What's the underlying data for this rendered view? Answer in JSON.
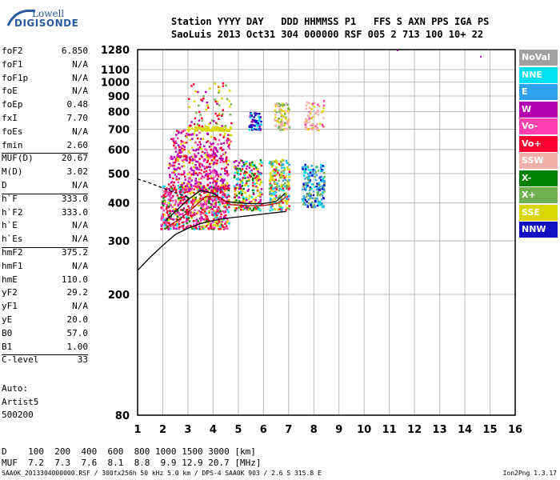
{
  "logo": {
    "line1": "Lowell",
    "line2": "DIGISONDE"
  },
  "header": {
    "line1": "Station YYYY DAY   DDD HHMMSS P1   FFS S AXN PPS IGA PS",
    "line2": "SaoLuis 2013 Oct31 304 000000 RSF 005 2 713 100 10+ 22"
  },
  "params": [
    {
      "label": "foF2",
      "value": "6.850"
    },
    {
      "label": "foF1",
      "value": "N/A"
    },
    {
      "label": "foF1p",
      "value": "N/A"
    },
    {
      "label": "foE",
      "value": "N/A"
    },
    {
      "label": "foEp",
      "value": "0.48"
    },
    {
      "label": "fxI",
      "value": "7.70"
    },
    {
      "label": "foEs",
      "value": "N/A"
    },
    {
      "label": "fmin",
      "value": "2.60"
    },
    {
      "label": "MUF(D)",
      "value": "20.67",
      "sep": true
    },
    {
      "label": "M(D)",
      "value": "3.02"
    },
    {
      "label": "D",
      "value": "N/A"
    },
    {
      "label": "h`F",
      "value": "333.0",
      "sep": true
    },
    {
      "label": "h`F2",
      "value": "333.0"
    },
    {
      "label": "h`E",
      "value": "N/A"
    },
    {
      "label": "h`Es",
      "value": "N/A"
    },
    {
      "label": "hmF2",
      "value": "375.2",
      "sep": true
    },
    {
      "label": "hmF1",
      "value": "N/A"
    },
    {
      "label": "hmE",
      "value": "110.0"
    },
    {
      "label": "yF2",
      "value": "29.2"
    },
    {
      "label": "yF1",
      "value": "N/A"
    },
    {
      "label": "yE",
      "value": "20.0"
    },
    {
      "label": "B0",
      "value": "57.0"
    },
    {
      "label": "B1",
      "value": "1.00"
    },
    {
      "label": "C-level",
      "value": "33",
      "sep": true
    }
  ],
  "auto": {
    "line1": "Auto:",
    "line2": "Artist5",
    "line3": "500200"
  },
  "legend": [
    {
      "label": "NoVal",
      "color": "#a0a0a0"
    },
    {
      "label": "NNE",
      "color": "#00e0f0"
    },
    {
      "label": "E",
      "color": "#30a0f0"
    },
    {
      "label": "W",
      "color": "#b000b0"
    },
    {
      "label": "Vo-",
      "color": "#ff40b0"
    },
    {
      "label": "Vo+",
      "color": "#ff0030"
    },
    {
      "label": "SSW",
      "color": "#f0b0a8"
    },
    {
      "label": "X-",
      "color": "#008000"
    },
    {
      "label": "X+",
      "color": "#70b050"
    },
    {
      "label": "SSE",
      "color": "#d8d800"
    },
    {
      "label": "NNW",
      "color": "#1010c0"
    }
  ],
  "footer": {
    "line1": "D    100  200  400  600  800 1000 1500 3000 [km]",
    "line2": "MUF  7.2  7.3  7.6  8.1  8.8  9.9 12.9 20.7 [MHz]",
    "line3": "SAA0K_2013304000000.RSF / 300fx256h 50 kHz 5.0 km / DPS-4 SAA0K 903 / 2.6 S 315.8 E",
    "version": "Ion2Png 1.3.17"
  },
  "chart_data": {
    "type": "scatter",
    "title": "",
    "xlabel": "",
    "ylabel": "",
    "xlim": [
      1,
      16
    ],
    "ylim": [
      80,
      1280
    ],
    "y_scale": "log",
    "x_ticks": [
      1,
      2,
      3,
      4,
      5,
      6,
      7,
      8,
      9,
      10,
      11,
      12,
      13,
      14,
      15,
      16
    ],
    "y_ticks": [
      80,
      200,
      300,
      400,
      500,
      600,
      700,
      800,
      900,
      1000,
      1100,
      1280
    ],
    "y_tick_labels": [
      "80",
      "200",
      "300",
      "400",
      "500",
      "600",
      "700",
      "800",
      "900",
      "1000",
      "1100",
      "1280"
    ],
    "grid": true,
    "legend_position": "right",
    "clusters": [
      {
        "fmin": 1.9,
        "fmax": 4.6,
        "hmin": 330,
        "hmax": 460,
        "n": 700,
        "mix": [
          [
            5,
            0.3
          ],
          [
            4,
            0.25
          ],
          [
            9,
            0.15
          ],
          [
            1,
            0.1
          ],
          [
            7,
            0.1
          ],
          [
            3,
            0.1
          ]
        ]
      },
      {
        "fmin": 2.2,
        "fmax": 4.6,
        "hmin": 440,
        "hmax": 580,
        "n": 350,
        "mix": [
          [
            3,
            0.45
          ],
          [
            5,
            0.25
          ],
          [
            9,
            0.15
          ],
          [
            4,
            0.15
          ]
        ]
      },
      {
        "fmin": 2.3,
        "fmax": 4.7,
        "hmin": 580,
        "hmax": 700,
        "n": 150,
        "mix": [
          [
            3,
            0.4
          ],
          [
            5,
            0.3
          ],
          [
            9,
            0.15
          ],
          [
            4,
            0.15
          ]
        ]
      },
      {
        "fmin": 2.9,
        "fmax": 4.7,
        "hmin": 695,
        "hmax": 720,
        "n": 80,
        "mix": [
          [
            9,
            1.0
          ]
        ]
      },
      {
        "fmin": 3.0,
        "fmax": 4.7,
        "hmin": 720,
        "hmax": 1000,
        "n": 70,
        "mix": [
          [
            5,
            0.35
          ],
          [
            3,
            0.25
          ],
          [
            8,
            0.2
          ],
          [
            9,
            0.2
          ]
        ]
      },
      {
        "fmin": 4.8,
        "fmax": 5.9,
        "hmin": 380,
        "hmax": 560,
        "n": 250,
        "mix": [
          [
            9,
            0.3
          ],
          [
            7,
            0.2
          ],
          [
            3,
            0.2
          ],
          [
            1,
            0.15
          ],
          [
            5,
            0.15
          ]
        ]
      },
      {
        "fmin": 5.4,
        "fmax": 5.9,
        "hmin": 700,
        "hmax": 800,
        "n": 60,
        "mix": [
          [
            10,
            0.6
          ],
          [
            1,
            0.2
          ],
          [
            3,
            0.2
          ]
        ]
      },
      {
        "fmin": 6.2,
        "fmax": 7.0,
        "hmin": 380,
        "hmax": 560,
        "n": 220,
        "mix": [
          [
            9,
            0.3
          ],
          [
            8,
            0.2
          ],
          [
            1,
            0.2
          ],
          [
            2,
            0.15
          ],
          [
            5,
            0.15
          ]
        ]
      },
      {
        "fmin": 6.4,
        "fmax": 7.0,
        "hmin": 700,
        "hmax": 860,
        "n": 90,
        "mix": [
          [
            6,
            0.5
          ],
          [
            9,
            0.3
          ],
          [
            8,
            0.2
          ]
        ]
      },
      {
        "fmin": 7.5,
        "fmax": 8.4,
        "hmin": 390,
        "hmax": 540,
        "n": 200,
        "mix": [
          [
            2,
            0.3
          ],
          [
            10,
            0.3
          ],
          [
            1,
            0.2
          ],
          [
            8,
            0.2
          ]
        ]
      },
      {
        "fmin": 7.6,
        "fmax": 8.4,
        "hmin": 700,
        "hmax": 880,
        "n": 70,
        "mix": [
          [
            6,
            0.6
          ],
          [
            9,
            0.2
          ],
          [
            4,
            0.2
          ]
        ]
      }
    ],
    "curves": [
      {
        "name": "profile",
        "color": "#000000",
        "points": [
          [
            1,
            240
          ],
          [
            1.5,
            265
          ],
          [
            2,
            290
          ],
          [
            2.5,
            315
          ],
          [
            3,
            330
          ],
          [
            3.5,
            342
          ],
          [
            4,
            350
          ],
          [
            4.5,
            356
          ],
          [
            5,
            360
          ],
          [
            5.5,
            364
          ],
          [
            6,
            368
          ],
          [
            6.5,
            372
          ],
          [
            6.9,
            375
          ]
        ]
      },
      {
        "name": "trace-o",
        "color": "#000000",
        "points": [
          [
            2.1,
            350
          ],
          [
            2.5,
            375
          ],
          [
            3,
            410
          ],
          [
            3.5,
            440
          ],
          [
            4,
            430
          ],
          [
            4.5,
            405
          ],
          [
            5,
            400
          ],
          [
            5.5,
            398
          ],
          [
            6,
            398
          ],
          [
            6.5,
            405
          ],
          [
            6.85,
            430
          ]
        ]
      },
      {
        "name": "trace-x",
        "color": "#b00000",
        "points": [
          [
            2.2,
            335
          ],
          [
            2.7,
            355
          ],
          [
            3.2,
            385
          ],
          [
            3.7,
            420
          ],
          [
            4.2,
            420
          ],
          [
            4.7,
            395
          ],
          [
            5.3,
            392
          ],
          [
            6,
            392
          ],
          [
            6.6,
            400
          ],
          [
            6.9,
            420
          ]
        ]
      },
      {
        "name": "dashed",
        "color": "#000000",
        "dash": true,
        "points": [
          [
            1,
            480
          ],
          [
            1.5,
            465
          ],
          [
            2,
            448
          ],
          [
            2.5,
            432
          ],
          [
            3,
            418
          ]
        ]
      }
    ],
    "outliers": [
      [
        11.3,
        1280
      ],
      [
        14.6,
        1220
      ]
    ]
  }
}
